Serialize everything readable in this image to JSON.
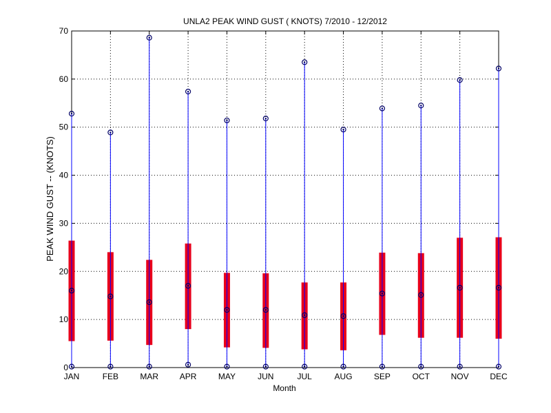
{
  "chart_data": {
    "type": "box",
    "title": "UNLA2  PEAK WIND GUST ( KNOTS) 7/2010 - 12/2012",
    "xlabel": "Month",
    "ylabel": "PEAK WIND GUST -- (KNOTS)",
    "ylim": [
      0,
      70
    ],
    "yticks": [
      0,
      10,
      20,
      30,
      40,
      50,
      60,
      70
    ],
    "grid": true,
    "categories": [
      "JAN",
      "FEB",
      "MAR",
      "APR",
      "MAY",
      "JUN",
      "JUL",
      "AUG",
      "SEP",
      "OCT",
      "NOV",
      "DEC"
    ],
    "min": [
      0.2,
      0.2,
      0.2,
      0.6,
      0.2,
      0.2,
      0.2,
      0.2,
      0.2,
      0.2,
      0.2,
      0.2
    ],
    "q1": [
      5.5,
      5.6,
      4.7,
      8.0,
      4.2,
      4.1,
      3.8,
      3.6,
      6.8,
      6.2,
      6.2,
      6.0
    ],
    "median": [
      16.0,
      14.8,
      13.6,
      17.0,
      12.0,
      12.0,
      10.9,
      10.7,
      15.4,
      15.1,
      16.6,
      16.6
    ],
    "q3": [
      26.4,
      24.0,
      22.4,
      25.8,
      19.7,
      19.6,
      17.7,
      17.7,
      23.9,
      23.8,
      27.0,
      27.1
    ],
    "max": [
      52.8,
      48.9,
      68.6,
      57.4,
      51.4,
      51.8,
      63.5,
      49.5,
      53.9,
      54.5,
      59.8,
      62.2
    ],
    "colors": {
      "whisker": "#0000ff",
      "box": "#e8001c",
      "marker": "#000066",
      "grid": "#000000"
    }
  }
}
